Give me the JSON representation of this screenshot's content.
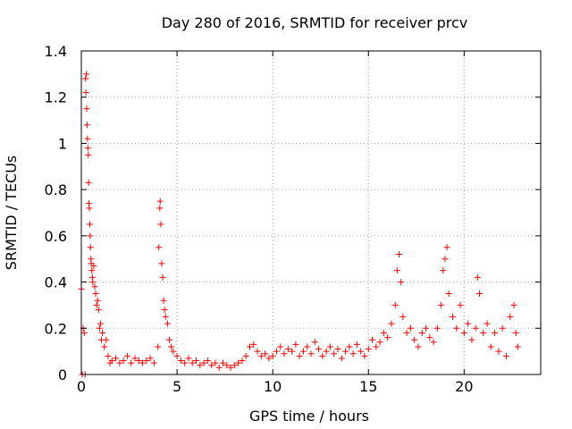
{
  "chart_data": {
    "type": "scatter",
    "title": "Day 280 of 2016, SRMTID for receiver prcv",
    "xlabel": "GPS time / hours",
    "ylabel": "SRMTID / TECUs",
    "xlim": [
      0,
      24
    ],
    "ylim": [
      0,
      1.4
    ],
    "grid": true,
    "marker": "+",
    "x_ticks": [
      0,
      5,
      10,
      15,
      20
    ],
    "x_tick_labels": [
      "0",
      "5",
      "10",
      "15",
      "20"
    ],
    "y_ticks": [
      0,
      0.2,
      0.4,
      0.6,
      0.8,
      1.0,
      1.2,
      1.4
    ],
    "y_tick_labels": [
      "0",
      "0.2",
      "0.4",
      "0.6",
      "0.8",
      "1",
      "1.2",
      "1.4"
    ],
    "series": [
      {
        "name": "SRMTID",
        "color": "#ff0000",
        "points": [
          [
            0.0,
            0.37
          ],
          [
            0.05,
            0.0
          ],
          [
            0.1,
            0.2
          ],
          [
            0.15,
            0.18
          ],
          [
            0.2,
            0.0
          ],
          [
            0.22,
            1.28
          ],
          [
            0.24,
            1.22
          ],
          [
            0.26,
            1.3
          ],
          [
            0.28,
            1.15
          ],
          [
            0.3,
            1.08
          ],
          [
            0.32,
            1.02
          ],
          [
            0.34,
            0.98
          ],
          [
            0.36,
            0.95
          ],
          [
            0.38,
            0.83
          ],
          [
            0.4,
            0.74
          ],
          [
            0.42,
            0.72
          ],
          [
            0.44,
            0.65
          ],
          [
            0.46,
            0.6
          ],
          [
            0.48,
            0.55
          ],
          [
            0.5,
            0.5
          ],
          [
            0.52,
            0.48
          ],
          [
            0.55,
            0.45
          ],
          [
            0.58,
            0.42
          ],
          [
            0.6,
            0.4
          ],
          [
            0.65,
            0.47
          ],
          [
            0.7,
            0.38
          ],
          [
            0.75,
            0.35
          ],
          [
            0.8,
            0.3
          ],
          [
            0.85,
            0.32
          ],
          [
            0.9,
            0.28
          ],
          [
            0.95,
            0.2
          ],
          [
            1.0,
            0.22
          ],
          [
            1.05,
            0.15
          ],
          [
            1.1,
            0.18
          ],
          [
            1.2,
            0.12
          ],
          [
            1.3,
            0.15
          ],
          [
            1.4,
            0.08
          ],
          [
            1.5,
            0.05
          ],
          [
            1.6,
            0.06
          ],
          [
            1.8,
            0.07
          ],
          [
            2.0,
            0.05
          ],
          [
            2.2,
            0.06
          ],
          [
            2.4,
            0.08
          ],
          [
            2.6,
            0.05
          ],
          [
            2.8,
            0.07
          ],
          [
            3.0,
            0.06
          ],
          [
            3.2,
            0.05
          ],
          [
            3.4,
            0.06
          ],
          [
            3.6,
            0.07
          ],
          [
            3.8,
            0.05
          ],
          [
            4.0,
            0.12
          ],
          [
            4.05,
            0.55
          ],
          [
            4.1,
            0.72
          ],
          [
            4.12,
            0.75
          ],
          [
            4.15,
            0.65
          ],
          [
            4.2,
            0.48
          ],
          [
            4.25,
            0.42
          ],
          [
            4.3,
            0.32
          ],
          [
            4.35,
            0.28
          ],
          [
            4.4,
            0.25
          ],
          [
            4.5,
            0.22
          ],
          [
            4.6,
            0.15
          ],
          [
            4.7,
            0.12
          ],
          [
            4.8,
            0.1
          ],
          [
            5.0,
            0.08
          ],
          [
            5.2,
            0.06
          ],
          [
            5.4,
            0.05
          ],
          [
            5.6,
            0.07
          ],
          [
            5.8,
            0.05
          ],
          [
            6.0,
            0.06
          ],
          [
            6.2,
            0.04
          ],
          [
            6.4,
            0.05
          ],
          [
            6.6,
            0.06
          ],
          [
            6.8,
            0.04
          ],
          [
            7.0,
            0.05
          ],
          [
            7.2,
            0.03
          ],
          [
            7.4,
            0.05
          ],
          [
            7.6,
            0.04
          ],
          [
            7.8,
            0.03
          ],
          [
            8.0,
            0.04
          ],
          [
            8.2,
            0.05
          ],
          [
            8.4,
            0.06
          ],
          [
            8.6,
            0.08
          ],
          [
            8.8,
            0.12
          ],
          [
            9.0,
            0.13
          ],
          [
            9.2,
            0.1
          ],
          [
            9.4,
            0.08
          ],
          [
            9.6,
            0.09
          ],
          [
            9.8,
            0.07
          ],
          [
            10.0,
            0.08
          ],
          [
            10.2,
            0.1
          ],
          [
            10.4,
            0.12
          ],
          [
            10.6,
            0.09
          ],
          [
            10.8,
            0.11
          ],
          [
            11.0,
            0.1
          ],
          [
            11.2,
            0.13
          ],
          [
            11.4,
            0.08
          ],
          [
            11.6,
            0.1
          ],
          [
            11.8,
            0.12
          ],
          [
            12.0,
            0.09
          ],
          [
            12.2,
            0.14
          ],
          [
            12.4,
            0.11
          ],
          [
            12.6,
            0.08
          ],
          [
            12.8,
            0.1
          ],
          [
            13.0,
            0.12
          ],
          [
            13.2,
            0.09
          ],
          [
            13.4,
            0.11
          ],
          [
            13.6,
            0.07
          ],
          [
            13.8,
            0.1
          ],
          [
            14.0,
            0.12
          ],
          [
            14.2,
            0.09
          ],
          [
            14.4,
            0.13
          ],
          [
            14.6,
            0.1
          ],
          [
            14.8,
            0.08
          ],
          [
            15.0,
            0.11
          ],
          [
            15.2,
            0.15
          ],
          [
            15.4,
            0.12
          ],
          [
            15.6,
            0.14
          ],
          [
            15.8,
            0.18
          ],
          [
            16.0,
            0.16
          ],
          [
            16.2,
            0.22
          ],
          [
            16.4,
            0.3
          ],
          [
            16.5,
            0.45
          ],
          [
            16.6,
            0.52
          ],
          [
            16.7,
            0.4
          ],
          [
            16.8,
            0.25
          ],
          [
            17.0,
            0.18
          ],
          [
            17.2,
            0.2
          ],
          [
            17.4,
            0.15
          ],
          [
            17.6,
            0.12
          ],
          [
            17.8,
            0.18
          ],
          [
            18.0,
            0.2
          ],
          [
            18.2,
            0.16
          ],
          [
            18.4,
            0.14
          ],
          [
            18.6,
            0.2
          ],
          [
            18.8,
            0.3
          ],
          [
            18.9,
            0.45
          ],
          [
            19.0,
            0.5
          ],
          [
            19.1,
            0.55
          ],
          [
            19.2,
            0.35
          ],
          [
            19.4,
            0.25
          ],
          [
            19.6,
            0.2
          ],
          [
            19.8,
            0.3
          ],
          [
            20.0,
            0.18
          ],
          [
            20.2,
            0.22
          ],
          [
            20.4,
            0.15
          ],
          [
            20.6,
            0.2
          ],
          [
            20.7,
            0.42
          ],
          [
            20.8,
            0.35
          ],
          [
            21.0,
            0.18
          ],
          [
            21.2,
            0.22
          ],
          [
            21.4,
            0.12
          ],
          [
            21.6,
            0.18
          ],
          [
            21.8,
            0.1
          ],
          [
            22.0,
            0.2
          ],
          [
            22.2,
            0.08
          ],
          [
            22.4,
            0.25
          ],
          [
            22.6,
            0.3
          ],
          [
            22.7,
            0.18
          ],
          [
            22.8,
            0.12
          ]
        ]
      }
    ]
  }
}
